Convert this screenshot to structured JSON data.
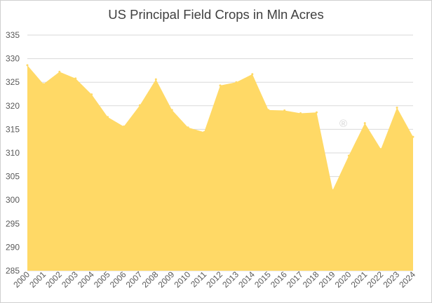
{
  "chart_data": {
    "type": "area",
    "title": "US Principal Field Crops in Mln Acres",
    "xlabel": "",
    "ylabel": "",
    "ylim": [
      285,
      335
    ],
    "y_ticks": [
      "285",
      "290",
      "295",
      "300",
      "305",
      "310",
      "315",
      "320",
      "325",
      "330",
      "335"
    ],
    "categories": [
      "2000",
      "2001",
      "2002",
      "2003",
      "2004",
      "2005",
      "2006",
      "2007",
      "2008",
      "2009",
      "2010",
      "2011",
      "2012",
      "2013",
      "2014",
      "2015",
      "2016",
      "2017",
      "2018",
      "2019",
      "2020",
      "2021",
      "2022",
      "2023",
      "2024"
    ],
    "values": [
      328.6,
      324.6,
      327.2,
      325.8,
      322.4,
      317.6,
      315.6,
      320.1,
      325.6,
      319.1,
      315.4,
      314.4,
      324.3,
      325.0,
      326.7,
      319.1,
      319.0,
      318.4,
      318.6,
      302.1,
      309.4,
      316.3,
      310.8,
      319.6,
      313.4
    ],
    "grid": true,
    "legend": "none",
    "colors": {
      "fill": "#FFD966",
      "grid": "#D9D9D9",
      "text": "#595959"
    }
  },
  "watermark": "®"
}
